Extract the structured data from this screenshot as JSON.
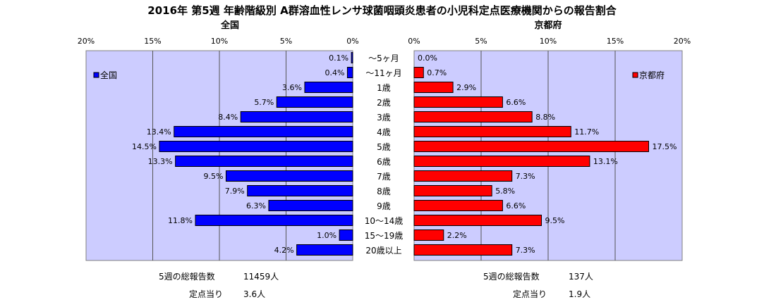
{
  "title": "2016年 第5週 年齢階級別 A群溶血性レンサ球菌咽頭炎患者の小児科定点医療機関からの報告割合",
  "chart_data": [
    {
      "type": "bar",
      "orientation": "horizontal",
      "direction": "right-to-left",
      "title": "全国",
      "categories": [
        "〜5ヶ月",
        "〜11ヶ月",
        "1歳",
        "2歳",
        "3歳",
        "4歳",
        "5歳",
        "6歳",
        "7歳",
        "8歳",
        "9歳",
        "10〜14歳",
        "15〜19歳",
        "20歳以上"
      ],
      "series": [
        {
          "name": "全国",
          "values": [
            0.1,
            0.4,
            3.6,
            5.7,
            8.4,
            13.4,
            14.5,
            13.3,
            9.5,
            7.9,
            6.3,
            11.8,
            1.0,
            4.2
          ],
          "color": "#0000ff"
        }
      ],
      "value_labels": [
        "0.1%",
        "0.4%",
        "3.6%",
        "5.7%",
        "8.4%",
        "13.4%",
        "14.5%",
        "13.3%",
        "9.5%",
        "7.9%",
        "6.3%",
        "11.8%",
        "1.0%",
        "4.2%"
      ],
      "xlim": [
        0,
        20
      ],
      "x_ticks": [
        "20%",
        "15%",
        "10%",
        "5%",
        "0%"
      ],
      "grid": true,
      "legend": "top-left",
      "plot_background": "#ccccff"
    },
    {
      "type": "bar",
      "orientation": "horizontal",
      "direction": "left-to-right",
      "title": "京都府",
      "categories": [
        "〜5ヶ月",
        "〜11ヶ月",
        "1歳",
        "2歳",
        "3歳",
        "4歳",
        "5歳",
        "6歳",
        "7歳",
        "8歳",
        "9歳",
        "10〜14歳",
        "15〜19歳",
        "20歳以上"
      ],
      "series": [
        {
          "name": "京都府",
          "values": [
            0.0,
            0.7,
            2.9,
            6.6,
            8.8,
            11.7,
            17.5,
            13.1,
            7.3,
            5.8,
            6.6,
            9.5,
            2.2,
            7.3
          ],
          "color": "#ff0000"
        }
      ],
      "value_labels": [
        "0.0%",
        "0.7%",
        "2.9%",
        "6.6%",
        "8.8%",
        "11.7%",
        "17.5%",
        "13.1%",
        "7.3%",
        "5.8%",
        "6.6%",
        "9.5%",
        "2.2%",
        "7.3%"
      ],
      "xlim": [
        0,
        20
      ],
      "x_ticks": [
        "0%",
        "5%",
        "10%",
        "15%",
        "20%"
      ],
      "grid": true,
      "legend": "top-right",
      "plot_background": "#ccccff"
    }
  ],
  "stats": {
    "national_total_label": "5週の総報告数",
    "national_total_value": "11459人",
    "national_per_label": "定点当り",
    "national_per_value": "3.6人",
    "kyoto_total_label": "5週の総報告数",
    "kyoto_total_value": "137人",
    "kyoto_per_label": "定点当り",
    "kyoto_per_value": "1.9人"
  }
}
